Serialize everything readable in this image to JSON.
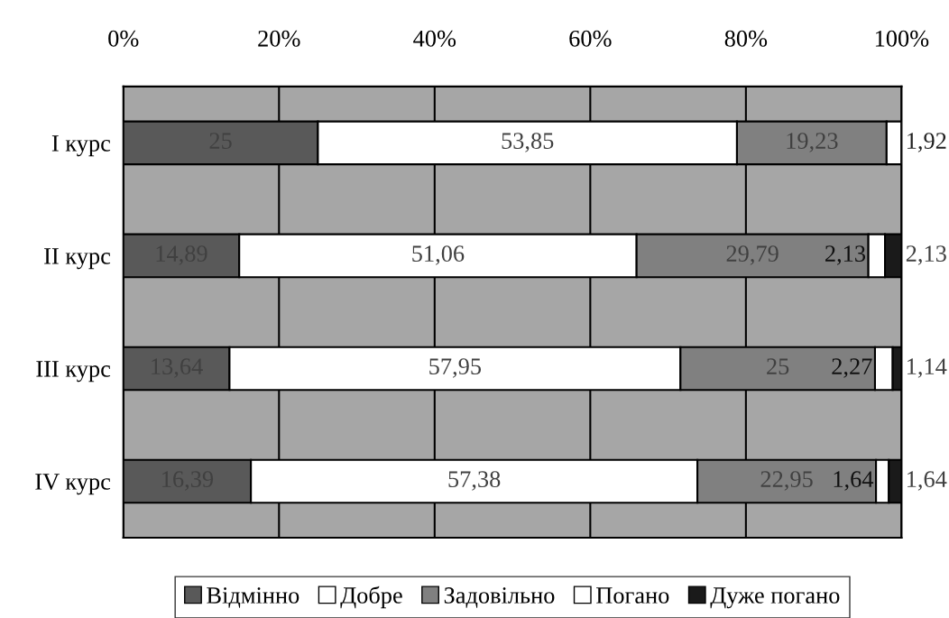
{
  "chart_data": {
    "type": "bar",
    "orientation": "horizontal",
    "stacked": true,
    "categories": [
      "I курс",
      "II курс",
      "III курс",
      "IV курс"
    ],
    "series": [
      {
        "name": "Відмінно",
        "color": "#595959",
        "values": [
          25,
          14.89,
          13.64,
          16.39
        ],
        "value_labels": [
          "25",
          "14,89",
          "13,64",
          "16,39"
        ]
      },
      {
        "name": "Добре",
        "color": "#ffffff",
        "values": [
          53.85,
          51.06,
          57.95,
          57.38
        ],
        "value_labels": [
          "53,85",
          "51,06",
          "57,95",
          "57,38"
        ]
      },
      {
        "name": "Задовільно",
        "color": "#808080",
        "values": [
          19.23,
          29.79,
          25,
          22.95
        ],
        "value_labels": [
          "19,23",
          "29,79",
          "25",
          "22,95"
        ]
      },
      {
        "name": "Погано",
        "color": "#ffffff",
        "values": [
          1.92,
          2.13,
          2.27,
          1.64
        ],
        "value_labels": [
          "1,92",
          "2,13",
          "2,27",
          "1,64"
        ]
      },
      {
        "name": "Дуже погано",
        "color": "#1a1a1a",
        "values": [
          null,
          2.13,
          1.14,
          1.64
        ],
        "value_labels": [
          null,
          "2,13",
          "1,14",
          "1,64"
        ]
      }
    ],
    "xlim": [
      0,
      100
    ],
    "xticks": [
      {
        "value": 0,
        "label": "0%"
      },
      {
        "value": 20,
        "label": "20%"
      },
      {
        "value": 40,
        "label": "40%"
      },
      {
        "value": 60,
        "label": "60%"
      },
      {
        "value": 80,
        "label": "80%"
      },
      {
        "value": 100,
        "label": "100%"
      }
    ],
    "grid": "x",
    "legend": "bottom"
  }
}
